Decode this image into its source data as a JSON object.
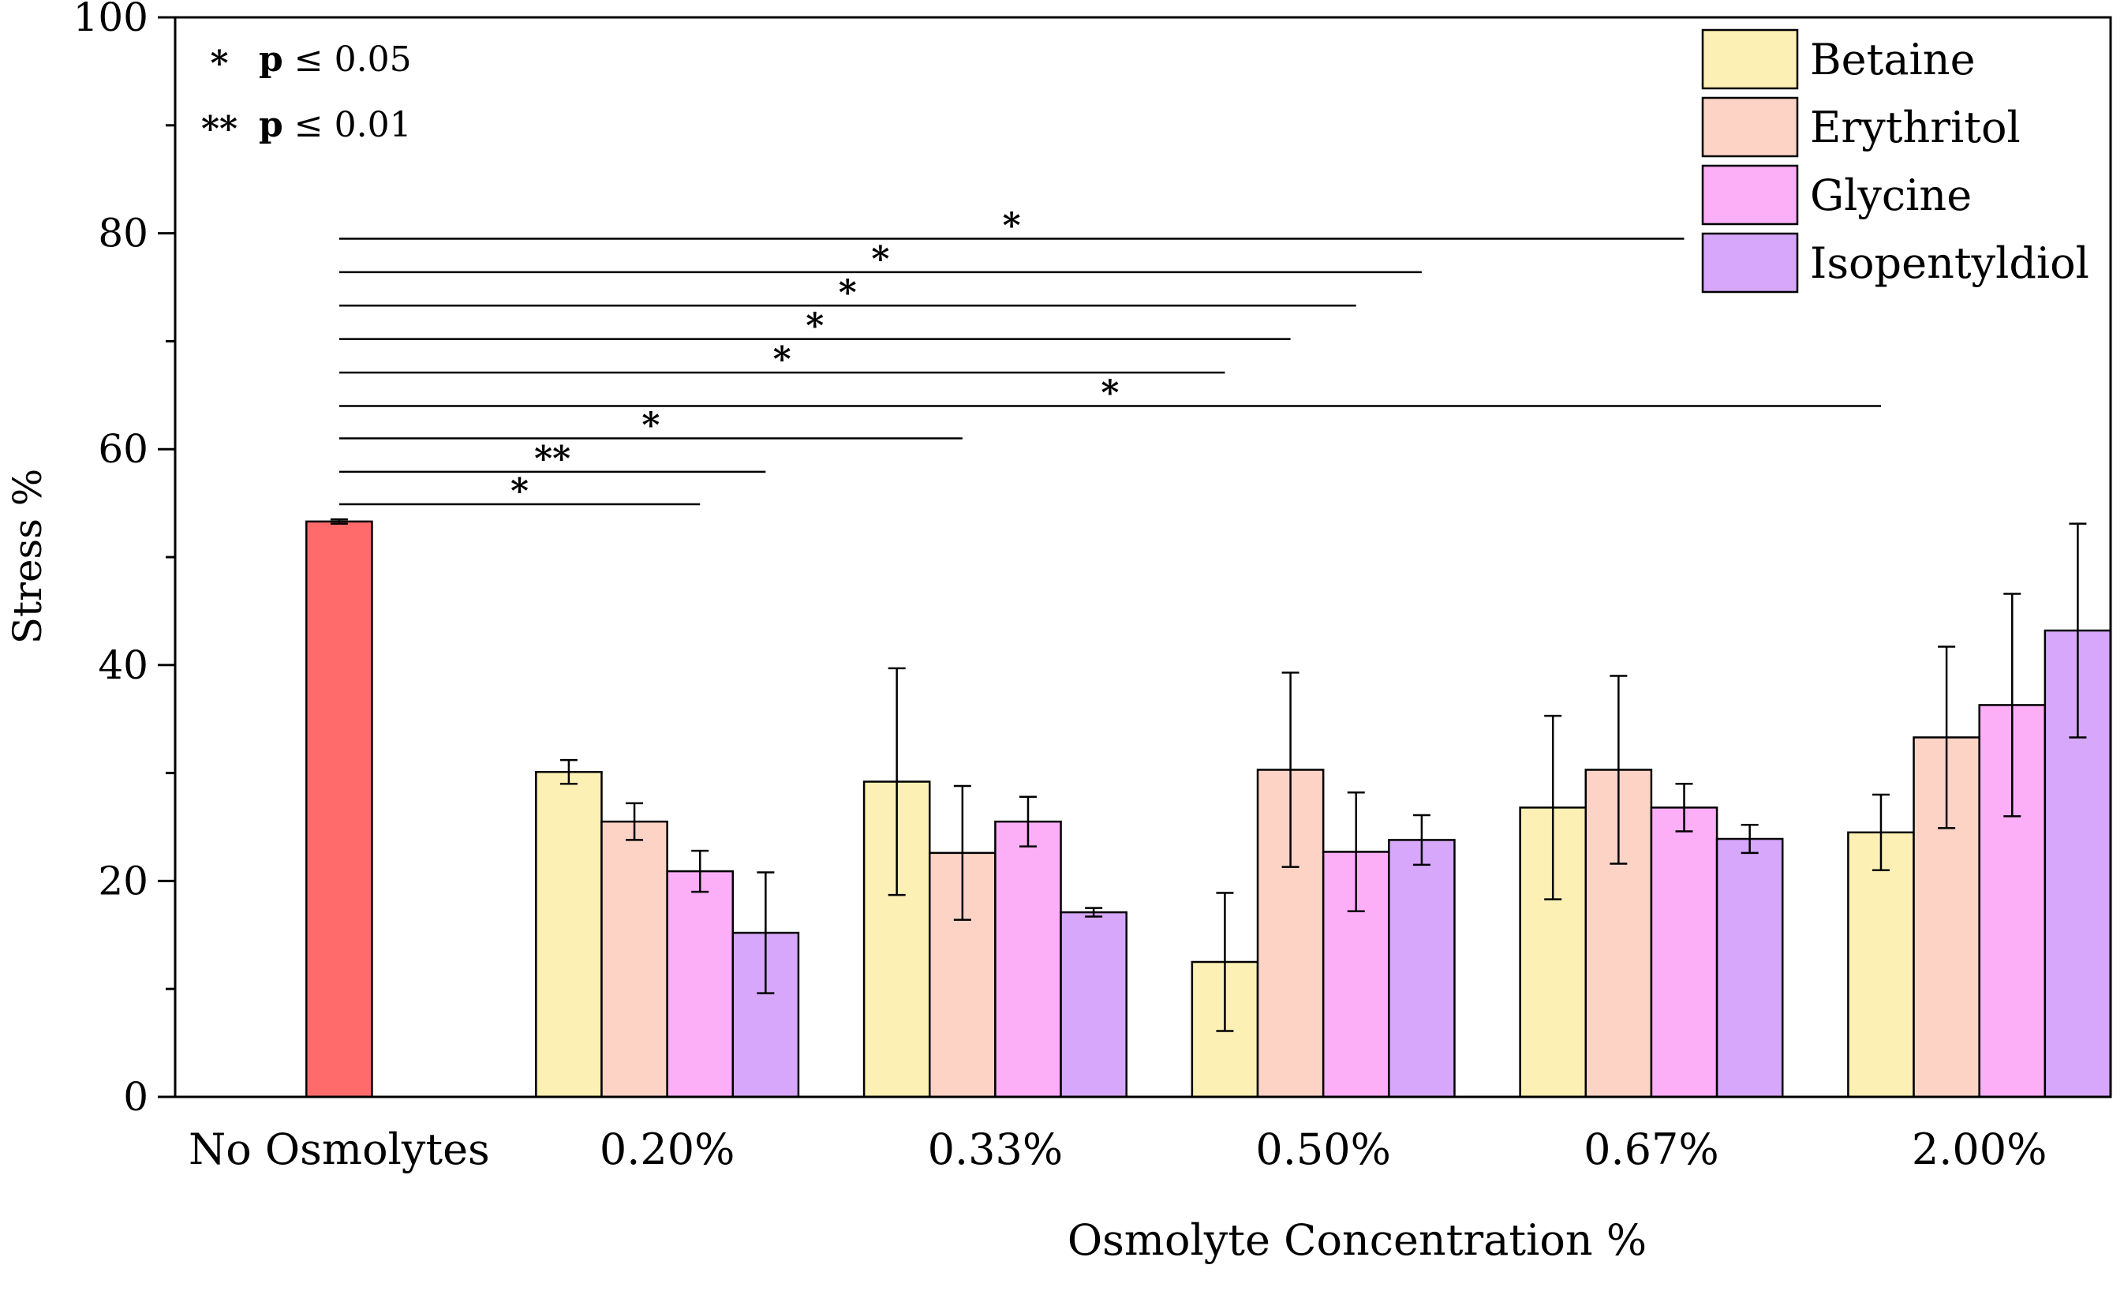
{
  "chart_data": {
    "type": "bar",
    "xlabel": "Osmolyte Concentration %",
    "ylabel": "Stress %",
    "ylim": [
      0,
      100
    ],
    "yticks": [
      0,
      20,
      40,
      60,
      80,
      100
    ],
    "grid": false,
    "legend_position": "top-right",
    "control": {
      "category": "No Osmolytes",
      "value": 53.3,
      "error": 0.2,
      "color": "#ff6b6b"
    },
    "categories": [
      "0.20%",
      "0.33%",
      "0.50%",
      "0.67%",
      "2.00%"
    ],
    "series": [
      {
        "name": "Betaine",
        "color": "#fdf0b4",
        "values": [
          30.1,
          29.2,
          12.5,
          26.8,
          24.5
        ],
        "errors": [
          1.1,
          10.5,
          6.4,
          8.5,
          3.5
        ]
      },
      {
        "name": "Erythritol",
        "color": "#fdd3c6",
        "values": [
          25.5,
          22.6,
          30.3,
          30.3,
          33.3
        ],
        "errors": [
          1.7,
          6.2,
          9.0,
          8.7,
          8.4
        ]
      },
      {
        "name": "Glycine",
        "color": "#fcaef7",
        "values": [
          20.9,
          25.5,
          22.7,
          26.8,
          36.3
        ],
        "errors": [
          1.9,
          2.3,
          5.5,
          2.2,
          10.3
        ]
      },
      {
        "name": "Isopentyldiol",
        "color": "#d6a7fb",
        "values": [
          15.2,
          17.1,
          23.8,
          23.9,
          43.2
        ],
        "errors": [
          5.6,
          0.4,
          2.3,
          1.3,
          9.9
        ]
      }
    ],
    "significance_legend": [
      {
        "symbol": "*",
        "label": "p",
        "text": " ≤ 0.05"
      },
      {
        "symbol": "**",
        "label": "p",
        "text": " ≤ 0.01"
      }
    ],
    "significance_brackets": [
      {
        "y": 79.5,
        "to_category": "0.67%",
        "to_series": "Glycine",
        "symbol": "*"
      },
      {
        "y": 76.4,
        "to_category": "0.50%",
        "to_series": "Isopentyldiol",
        "symbol": "*"
      },
      {
        "y": 73.3,
        "to_category": "0.50%",
        "to_series": "Glycine",
        "symbol": "*"
      },
      {
        "y": 70.2,
        "to_category": "0.50%",
        "to_series": "Erythritol",
        "symbol": "*"
      },
      {
        "y": 67.1,
        "to_category": "0.50%",
        "to_series": "Betaine",
        "symbol": "*"
      },
      {
        "y": 64.0,
        "to_category": "2.00%",
        "to_series": "Betaine",
        "symbol": "*"
      },
      {
        "y": 61.0,
        "to_category": "0.33%",
        "to_series": "Erythritol",
        "symbol": "*"
      },
      {
        "y": 57.9,
        "to_category": "0.20%",
        "to_series": "Isopentyldiol",
        "symbol": "**"
      },
      {
        "y": 54.9,
        "to_category": "0.20%",
        "to_series": "Glycine",
        "symbol": "*"
      }
    ]
  }
}
